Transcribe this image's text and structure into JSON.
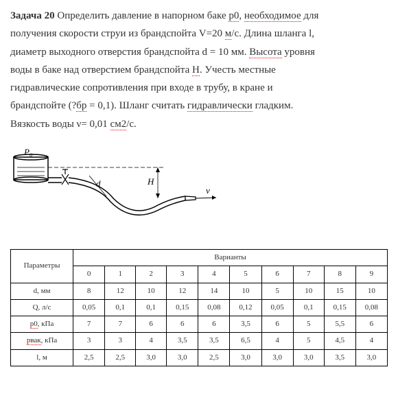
{
  "problem": {
    "title": "Задача 20",
    "t1": " Определить давление в напорном баке ",
    "t2": "р0",
    "t3": ", ",
    "t4": "необходимое",
    "t5": " для",
    "t6": "получения скорости струи из брандспойта V=20 ",
    "t7": "м",
    "t8": "/с. Длина шланга l,",
    "t9": "диаметр выходного отверстия брандспойта d = 10 мм. ",
    "t10": "Высота",
    "t11": " уровня",
    "t12": "воды в баке над отверстием брандспойта ",
    "t13": "Н",
    "t14": ". Учесть местные",
    "t15": "гидравлические сопротивления при входе в трубу, в кране и",
    "t16": "брандспойте (?",
    "t17": "бр",
    "t18": " = 0,1). Шланг считать ",
    "t19": "гидравлически",
    "t20": " гладким.",
    "t21": "Вязкость воды ν= 0,01 ",
    "t22": "см2",
    "t23": "/с."
  },
  "diagram": {
    "tank_label": "P₀",
    "height_label": "H",
    "velocity_label": "v",
    "diameter_label": "d"
  },
  "table": {
    "header_param": "Параметры",
    "header_variants": "Варианты",
    "variants": [
      "0",
      "1",
      "2",
      "3",
      "4",
      "5",
      "6",
      "7",
      "8",
      "9"
    ],
    "rows": [
      {
        "param": "d, мм",
        "values": [
          "8",
          "12",
          "10",
          "12",
          "14",
          "10",
          "5",
          "10",
          "15",
          "10"
        ]
      },
      {
        "param": "Q, л/с",
        "values": [
          "0,05",
          "0,1",
          "0,1",
          "0,15",
          "0,08",
          "0,12",
          "0,05",
          "0,1",
          "0,15",
          "0,08"
        ]
      },
      {
        "param": "р0, кПа",
        "values": [
          "7",
          "7",
          "6",
          "6",
          "6",
          "3,5",
          "6",
          "5",
          "5,5",
          "6"
        ]
      },
      {
        "param": "рвак, кПа",
        "values": [
          "3",
          "3",
          "4",
          "3,5",
          "3,5",
          "6,5",
          "4",
          "5",
          "4,5",
          "4"
        ]
      },
      {
        "param": "l, м",
        "values": [
          "2,5",
          "2,5",
          "3,0",
          "3,0",
          "2,5",
          "3,0",
          "3,0",
          "3,0",
          "3,5",
          "3,0"
        ]
      }
    ]
  }
}
